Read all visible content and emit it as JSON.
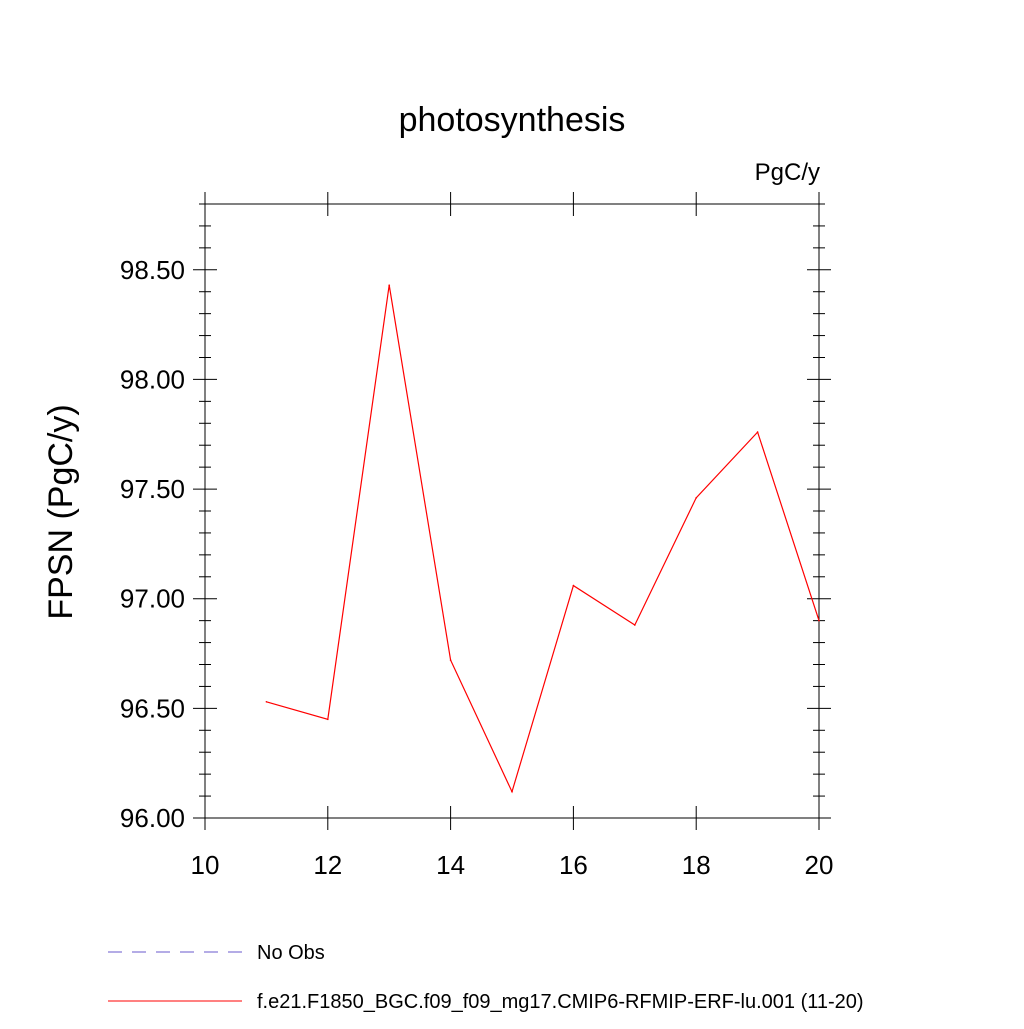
{
  "chart_data": {
    "type": "line",
    "title": "photosynthesis",
    "units_label": "PgC/y",
    "ylabel": "FPSN  (PgC/y)",
    "xlabel": "",
    "xlim": [
      10,
      20
    ],
    "ylim": [
      96.0,
      98.8
    ],
    "x_ticks": [
      10,
      12,
      14,
      16,
      18,
      20
    ],
    "x_tick_labels": [
      "10",
      "12",
      "14",
      "16",
      "18",
      "20"
    ],
    "y_ticks": [
      96.0,
      96.5,
      97.0,
      97.5,
      98.0,
      98.5
    ],
    "y_tick_labels": [
      "96.00",
      "96.50",
      "97.00",
      "97.50",
      "98.00",
      "98.50"
    ],
    "grid": false,
    "legend_position": "bottom",
    "series": [
      {
        "name": "f.e21.F1850_BGC.f09_f09_mg17.CMIP6-RFMIP-ERF-lu.001 (11-20)",
        "color": "#ff0000",
        "line_style": "solid",
        "x": [
          11,
          12,
          13,
          14,
          15,
          16,
          17,
          18,
          19,
          20
        ],
        "y": [
          96.53,
          96.45,
          98.43,
          96.72,
          96.12,
          97.06,
          96.88,
          97.46,
          97.76,
          96.9
        ]
      }
    ],
    "legend": [
      {
        "label": "No Obs",
        "color": "#6a5acd",
        "line_style": "dashed"
      },
      {
        "label": "f.e21.F1850_BGC.f09_f09_mg17.CMIP6-RFMIP-ERF-lu.001 (11-20)",
        "color": "#ff0000",
        "line_style": "solid"
      }
    ]
  }
}
